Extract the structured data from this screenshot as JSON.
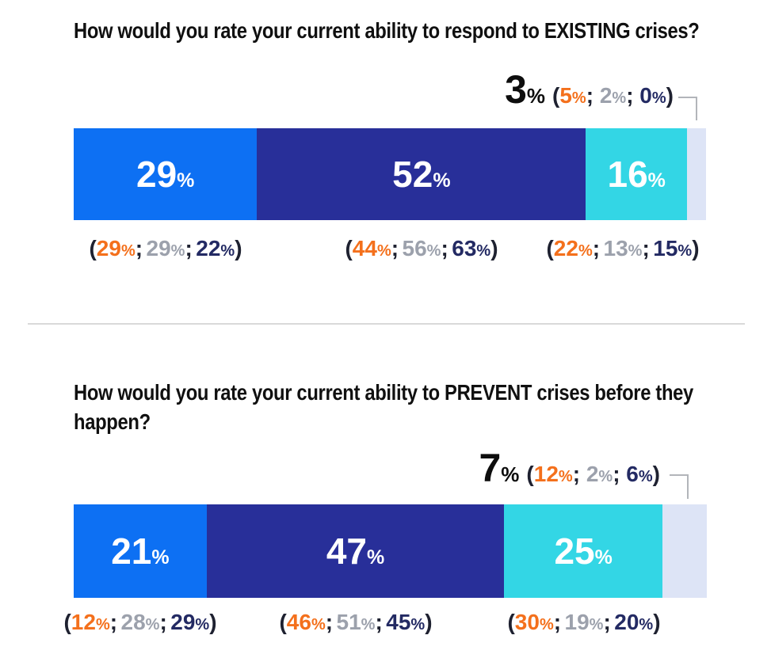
{
  "punct": {
    "open": "(",
    "close": ")",
    "sep": ";",
    "pct": "%"
  },
  "colors": {
    "bright_blue": "#0d70f3",
    "navy": "#282f99",
    "cyan": "#33d6e5",
    "lavender": "#dde4f6",
    "orange_text": "#f4701c",
    "gray_text": "#9ca1ac",
    "navy_text": "#232a63",
    "black_text": "#0d0d0d",
    "callout_line": "#b2b5ba",
    "divider": "#d9d9d9"
  },
  "chart_data": [
    {
      "type": "bar",
      "variant": "horizontal-stacked-percentage",
      "title": "How would you rate your current ability to respond to EXISTING crises?",
      "total": 100,
      "segments": [
        {
          "value": 29,
          "label": "29",
          "color": "#0d70f3"
        },
        {
          "value": 52,
          "label": "52",
          "color": "#282f99"
        },
        {
          "value": 16,
          "label": "16",
          "color": "#33d6e5"
        },
        {
          "value": 3,
          "label": "3",
          "color": "#dde4f6"
        }
      ],
      "breakdowns": [
        {
          "values": [
            "29",
            "29",
            "22"
          ]
        },
        {
          "values": [
            "44",
            "56",
            "63"
          ]
        },
        {
          "values": [
            "22",
            "13",
            "15"
          ]
        },
        {
          "values": [
            "5",
            "2",
            "0"
          ]
        }
      ],
      "breakdown_color_order": [
        "#f4701c",
        "#9ca1ac",
        "#232a63"
      ]
    },
    {
      "type": "bar",
      "variant": "horizontal-stacked-percentage",
      "title": "How would you rate your current ability to PREVENT crises before they happen?",
      "total": 100,
      "segments": [
        {
          "value": 21,
          "label": "21",
          "color": "#0d70f3"
        },
        {
          "value": 47,
          "label": "47",
          "color": "#282f99"
        },
        {
          "value": 25,
          "label": "25",
          "color": "#33d6e5"
        },
        {
          "value": 7,
          "label": "7",
          "color": "#dde4f6"
        }
      ],
      "breakdowns": [
        {
          "values": [
            "12",
            "28",
            "29"
          ]
        },
        {
          "values": [
            "46",
            "51",
            "45"
          ]
        },
        {
          "values": [
            "30",
            "19",
            "20"
          ]
        },
        {
          "values": [
            "12",
            "2",
            "6"
          ]
        }
      ],
      "breakdown_color_order": [
        "#f4701c",
        "#9ca1ac",
        "#232a63"
      ]
    }
  ]
}
